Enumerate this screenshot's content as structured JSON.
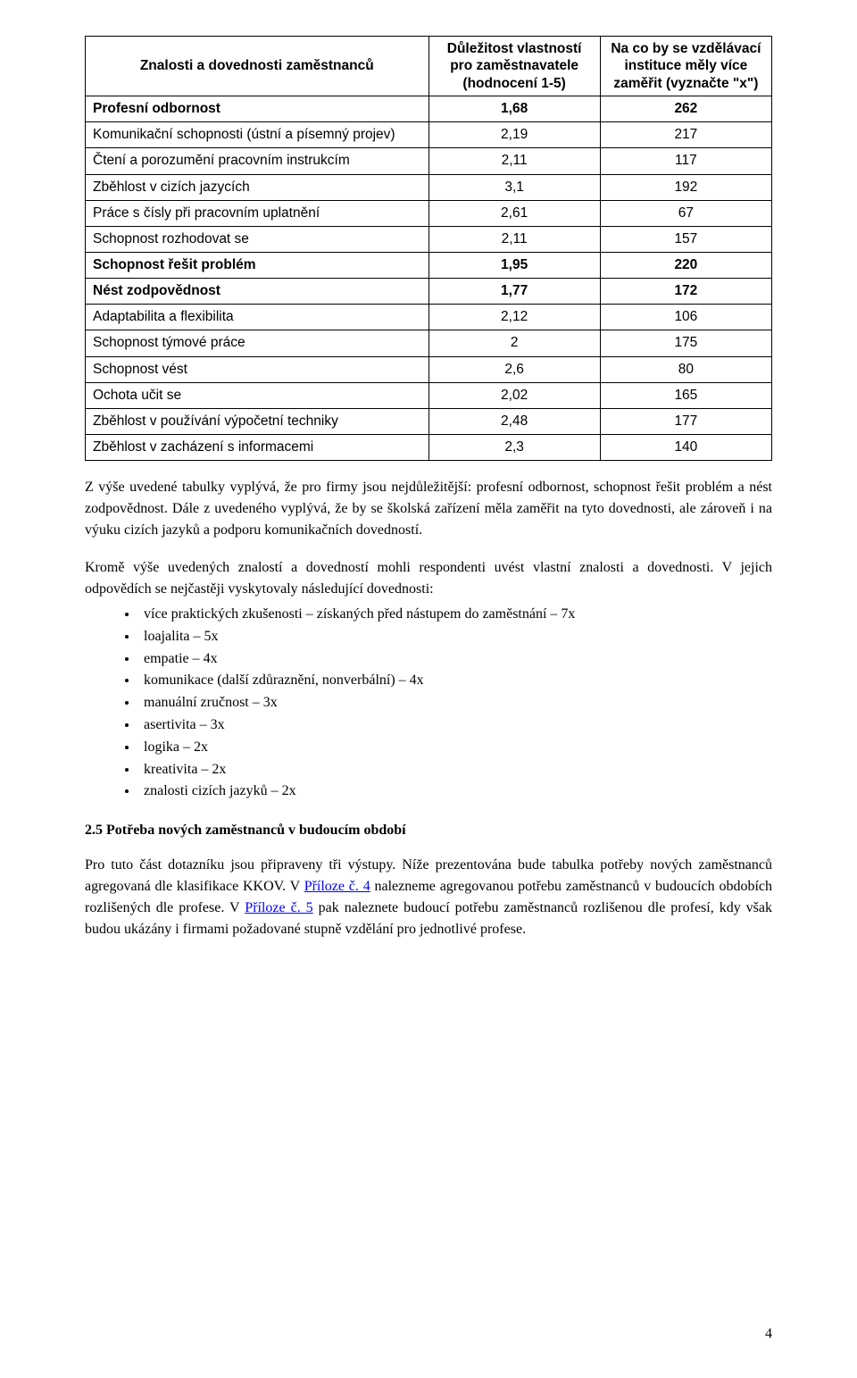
{
  "table": {
    "columns": [
      "Znalosti a dovednosti zaměstnanců",
      "Důležitost vlastností pro zaměstnavatele (hodnocení 1-5)",
      "Na co by se vzdělávací instituce měly více zaměřit (vyznačte \"x\")"
    ],
    "column_widths": [
      "50%",
      "25%",
      "25%"
    ],
    "border_color": "#000000",
    "header_bg": "#ffffff",
    "header_fontsize": 15.5,
    "body_fontsize": 15.5,
    "rows": [
      {
        "label": "Profesní odbornost",
        "v1": "1,68",
        "v2": "262",
        "bold": true
      },
      {
        "label": "Komunikační schopnosti (ústní a písemný projev)",
        "v1": "2,19",
        "v2": "217",
        "bold": false
      },
      {
        "label": "Čtení a porozumění pracovním instrukcím",
        "v1": "2,11",
        "v2": "117",
        "bold": false
      },
      {
        "label": "Zběhlost v cizích jazycích",
        "v1": "3,1",
        "v2": "192",
        "bold": false
      },
      {
        "label": "Práce s čísly při pracovním uplatnění",
        "v1": "2,61",
        "v2": "67",
        "bold": false
      },
      {
        "label": "Schopnost rozhodovat se",
        "v1": "2,11",
        "v2": "157",
        "bold": false
      },
      {
        "label": "Schopnost řešit problém",
        "v1": "1,95",
        "v2": "220",
        "bold": true
      },
      {
        "label": "Nést zodpovědnost",
        "v1": "1,77",
        "v2": "172",
        "bold": true
      },
      {
        "label": "Adaptabilita a flexibilita",
        "v1": "2,12",
        "v2": "106",
        "bold": false
      },
      {
        "label": "Schopnost týmové práce",
        "v1": "2",
        "v2": "175",
        "bold": false
      },
      {
        "label": "Schopnost vést",
        "v1": "2,6",
        "v2": "80",
        "bold": false
      },
      {
        "label": "Ochota učit se",
        "v1": "2,02",
        "v2": "165",
        "bold": false
      },
      {
        "label": "Zběhlost v používání výpočetní techniky",
        "v1": "2,48",
        "v2": "177",
        "bold": false
      },
      {
        "label": "Zběhlost v zacházení s informacemi",
        "v1": "2,3",
        "v2": "140",
        "bold": false
      }
    ]
  },
  "paragraphs": {
    "p1": "Z výše uvedené tabulky vyplývá, že pro firmy jsou nejdůležitější: profesní odbornost, schopnost řešit problém a nést zodpovědnost. Dále z uvedeného vyplývá, že by se školská zařízení měla zaměřit na tyto dovednosti, ale zároveň i na výuku cizích jazyků a podporu komunikačních dovedností.",
    "p2": "Kromě výše uvedených znalostí a dovedností mohli respondenti uvést vlastní znalosti a dovednosti. V jejich odpovědích se nejčastěji vyskytovaly následující dovednosti:",
    "p3_pre": "Pro tuto část dotazníku jsou připraveny tři výstupy. Níže prezentována bude tabulka potřeby nových zaměstnanců agregovaná dle klasifikace KKOV. V ",
    "p3_link1": "Příloze č. 4",
    "p3_mid": " nalezneme agregovanou potřebu zaměstnanců v budoucích obdobích rozlišených dle profese. V ",
    "p3_link2": "Příloze č. 5",
    "p3_post": " pak naleznete budoucí potřebu zaměstnanců rozlišenou dle profesí, kdy však budou ukázány i firmami požadované stupně vzdělání pro jednotlivé profese."
  },
  "bullets": [
    "více praktických zkušenosti – získaných před nástupem do zaměstnání – 7x",
    "loajalita – 5x",
    "empatie – 4x",
    "komunikace (další zdůraznění, nonverbální) – 4x",
    "manuální zručnost – 3x",
    "asertivita – 3x",
    "logika – 2x",
    "kreativita – 2x",
    "znalosti cizích jazyků – 2x"
  ],
  "heading": "2.5 Potřeba nových zaměstnanců v budoucím období",
  "page_number": "4",
  "link_color": "#0000ff",
  "text_color": "#000000",
  "background_color": "#ffffff"
}
